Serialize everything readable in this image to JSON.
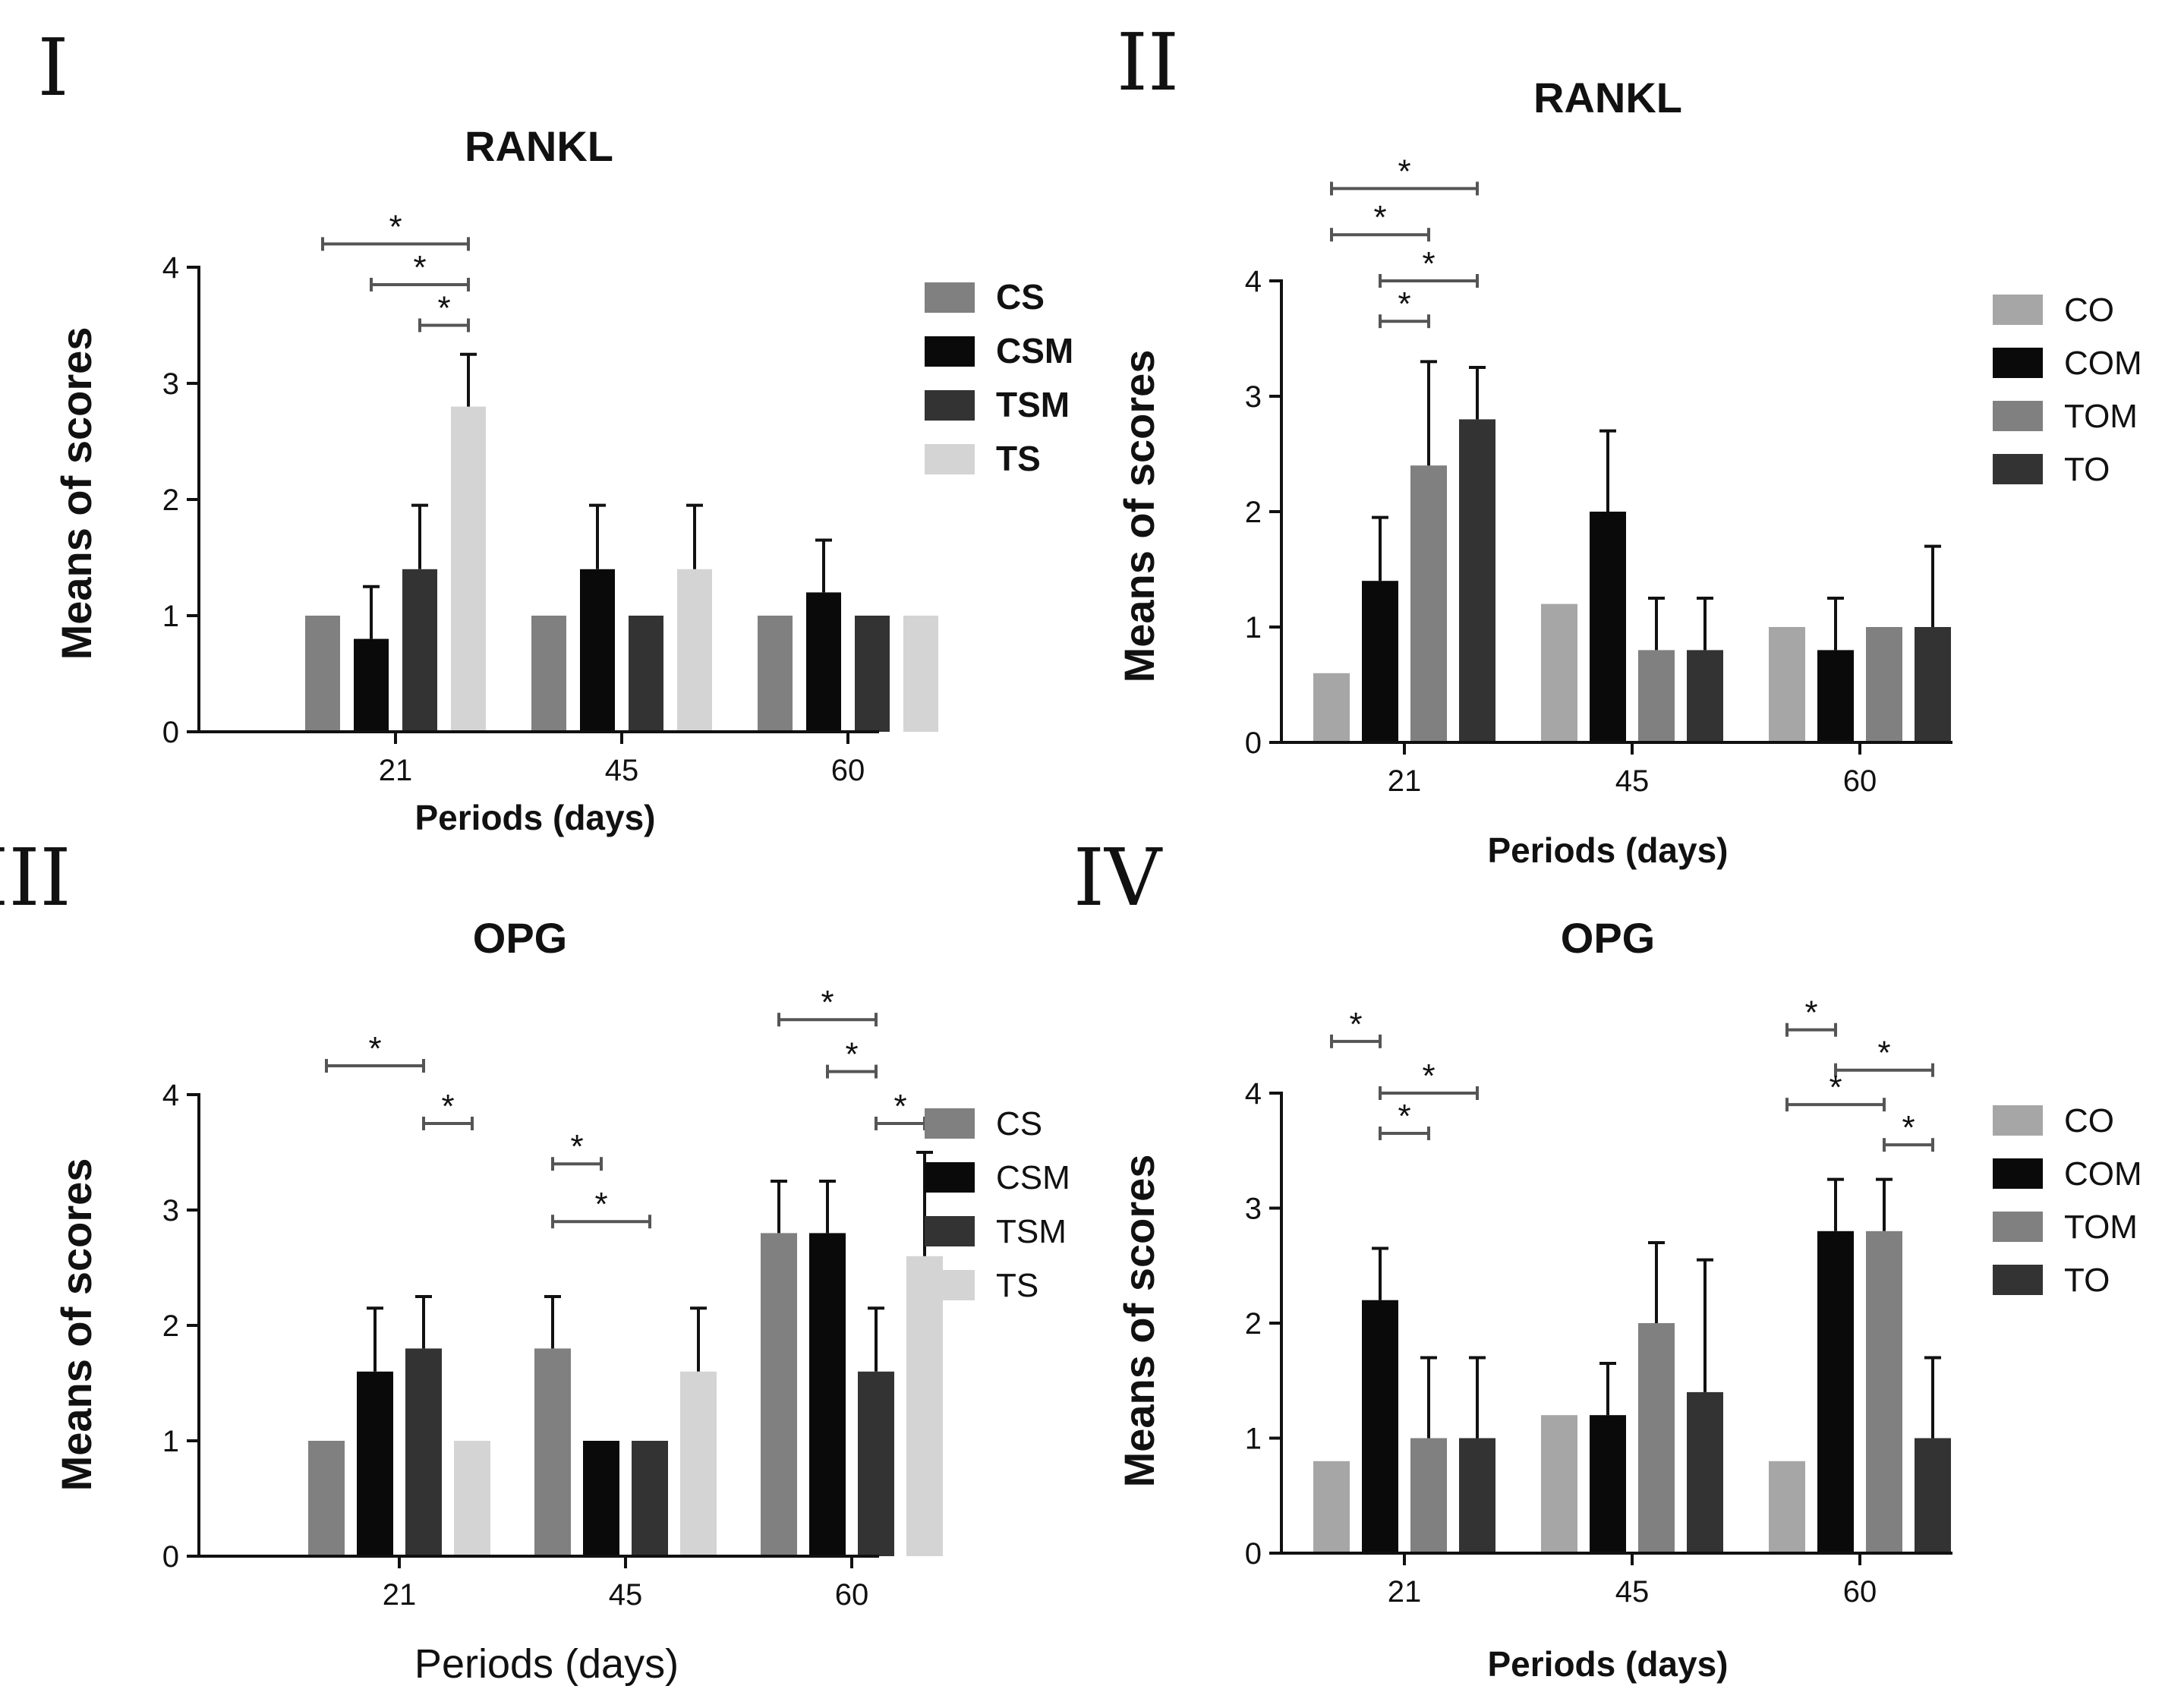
{
  "figure": {
    "background": "#ffffff"
  },
  "chart_data": [
    {
      "panel": "I",
      "type": "bar",
      "title": "RANKL",
      "xlabel": "Periods (days)",
      "ylabel": "Means of scores",
      "categories": [
        "21",
        "45",
        "60"
      ],
      "ylim": [
        0,
        4
      ],
      "yticks": [
        0,
        1,
        2,
        3,
        4
      ],
      "series": [
        {
          "name": "CS",
          "color": "#808080",
          "values": [
            1.0,
            1.0,
            1.0
          ],
          "errors": [
            0,
            0,
            0
          ]
        },
        {
          "name": "CSM",
          "color": "#0a0a0a",
          "values": [
            0.8,
            1.4,
            1.2
          ],
          "errors": [
            0.45,
            0.55,
            0.45
          ]
        },
        {
          "name": "TSM",
          "color": "#333333",
          "values": [
            1.4,
            1.0,
            1.0
          ],
          "errors": [
            0.55,
            0,
            0
          ]
        },
        {
          "name": "TS",
          "color": "#d4d4d4",
          "values": [
            2.8,
            1.4,
            1.0
          ],
          "errors": [
            0.45,
            0.55,
            0
          ]
        }
      ],
      "significance": [
        {
          "label": "*",
          "group": 0,
          "from": 0,
          "to": 3,
          "level": 4.2
        },
        {
          "label": "*",
          "group": 0,
          "from": 1,
          "to": 3,
          "level": 3.85
        },
        {
          "label": "*",
          "group": 0,
          "from": 2,
          "to": 3,
          "level": 3.5
        }
      ]
    },
    {
      "panel": "II",
      "type": "bar",
      "title": "RANKL",
      "xlabel": "Periods (days)",
      "ylabel": "Means of scores",
      "categories": [
        "21",
        "45",
        "60"
      ],
      "ylim": [
        0,
        4
      ],
      "yticks": [
        0,
        1,
        2,
        3,
        4
      ],
      "series": [
        {
          "name": "CO",
          "color": "#a6a6a6",
          "values": [
            0.6,
            1.2,
            1.0
          ],
          "errors": [
            0,
            0,
            0
          ]
        },
        {
          "name": "COM",
          "color": "#0a0a0a",
          "values": [
            1.4,
            2.0,
            0.8
          ],
          "errors": [
            0.55,
            0.7,
            0.45
          ]
        },
        {
          "name": "TOM",
          "color": "#808080",
          "values": [
            2.4,
            0.8,
            1.0
          ],
          "errors": [
            0.9,
            0.45,
            0
          ]
        },
        {
          "name": "TO",
          "color": "#333333",
          "values": [
            2.8,
            0.8,
            1.0
          ],
          "errors": [
            0.45,
            0.45,
            0.7
          ]
        }
      ],
      "significance": [
        {
          "label": "*",
          "group": 0,
          "from": 0,
          "to": 3,
          "level": 4.8
        },
        {
          "label": "*",
          "group": 0,
          "from": 0,
          "to": 2,
          "level": 4.4
        },
        {
          "label": "*",
          "group": 0,
          "from": 1,
          "to": 3,
          "level": 4.0
        },
        {
          "label": "*",
          "group": 0,
          "from": 1,
          "to": 2,
          "level": 3.65
        }
      ]
    },
    {
      "panel": "III",
      "type": "bar",
      "title": "OPG",
      "xlabel": "Periods (days)",
      "ylabel": "Means of scores",
      "categories": [
        "21",
        "45",
        "60"
      ],
      "ylim": [
        0,
        4
      ],
      "yticks": [
        0,
        1,
        2,
        3,
        4
      ],
      "series": [
        {
          "name": "CS",
          "color": "#808080",
          "values": [
            1.0,
            1.8,
            2.8
          ],
          "errors": [
            0,
            0.45,
            0.45
          ]
        },
        {
          "name": "CSM",
          "color": "#0a0a0a",
          "values": [
            1.6,
            1.0,
            2.8
          ],
          "errors": [
            0.55,
            0,
            0.45
          ]
        },
        {
          "name": "TSM",
          "color": "#333333",
          "values": [
            1.8,
            1.0,
            1.6
          ],
          "errors": [
            0.45,
            0,
            0.55
          ]
        },
        {
          "name": "TS",
          "color": "#d4d4d4",
          "values": [
            1.0,
            1.6,
            2.6
          ],
          "errors": [
            0,
            0.55,
            0.9
          ]
        }
      ],
      "significance": [
        {
          "label": "*",
          "group": 0,
          "from": 0,
          "to": 2,
          "level": 4.25
        },
        {
          "label": "*",
          "group": 0,
          "from": 2,
          "to": 3,
          "level": 3.75
        },
        {
          "label": "*",
          "group": 1,
          "from": 0,
          "to": 1,
          "level": 3.4
        },
        {
          "label": "*",
          "group": 1,
          "from": 0,
          "to": 2,
          "level": 2.9
        },
        {
          "label": "*",
          "group": 2,
          "from": 0,
          "to": 2,
          "level": 4.65
        },
        {
          "label": "*",
          "group": 2,
          "from": 1,
          "to": 2,
          "level": 4.2
        },
        {
          "label": "*",
          "group": 2,
          "from": 2,
          "to": 3,
          "level": 3.75
        }
      ]
    },
    {
      "panel": "IV",
      "type": "bar",
      "title": "OPG",
      "xlabel": "Periods (days)",
      "ylabel": "Means of scores",
      "categories": [
        "21",
        "45",
        "60"
      ],
      "ylim": [
        0,
        4
      ],
      "yticks": [
        0,
        1,
        2,
        3,
        4
      ],
      "series": [
        {
          "name": "CO",
          "color": "#a6a6a6",
          "values": [
            0.8,
            1.2,
            0.8
          ],
          "errors": [
            0,
            0,
            0
          ]
        },
        {
          "name": "COM",
          "color": "#0a0a0a",
          "values": [
            2.2,
            1.2,
            2.8
          ],
          "errors": [
            0.45,
            0.45,
            0.45
          ]
        },
        {
          "name": "TOM",
          "color": "#808080",
          "values": [
            1.0,
            2.0,
            2.8
          ],
          "errors": [
            0.7,
            0.7,
            0.45
          ]
        },
        {
          "name": "TO",
          "color": "#333333",
          "values": [
            1.0,
            1.4,
            1.0
          ],
          "errors": [
            0.7,
            1.15,
            0.7
          ]
        }
      ],
      "significance": [
        {
          "label": "*",
          "group": 0,
          "from": 0,
          "to": 1,
          "level": 4.45
        },
        {
          "label": "*",
          "group": 0,
          "from": 1,
          "to": 3,
          "level": 4.0
        },
        {
          "label": "*",
          "group": 0,
          "from": 1,
          "to": 2,
          "level": 3.65
        },
        {
          "label": "*",
          "group": 2,
          "from": 0,
          "to": 1,
          "level": 4.55
        },
        {
          "label": "*",
          "group": 2,
          "from": 1,
          "to": 3,
          "level": 4.2
        },
        {
          "label": "*",
          "group": 2,
          "from": 0,
          "to": 2,
          "level": 3.9
        },
        {
          "label": "*",
          "group": 2,
          "from": 2,
          "to": 3,
          "level": 3.55
        }
      ]
    }
  ]
}
